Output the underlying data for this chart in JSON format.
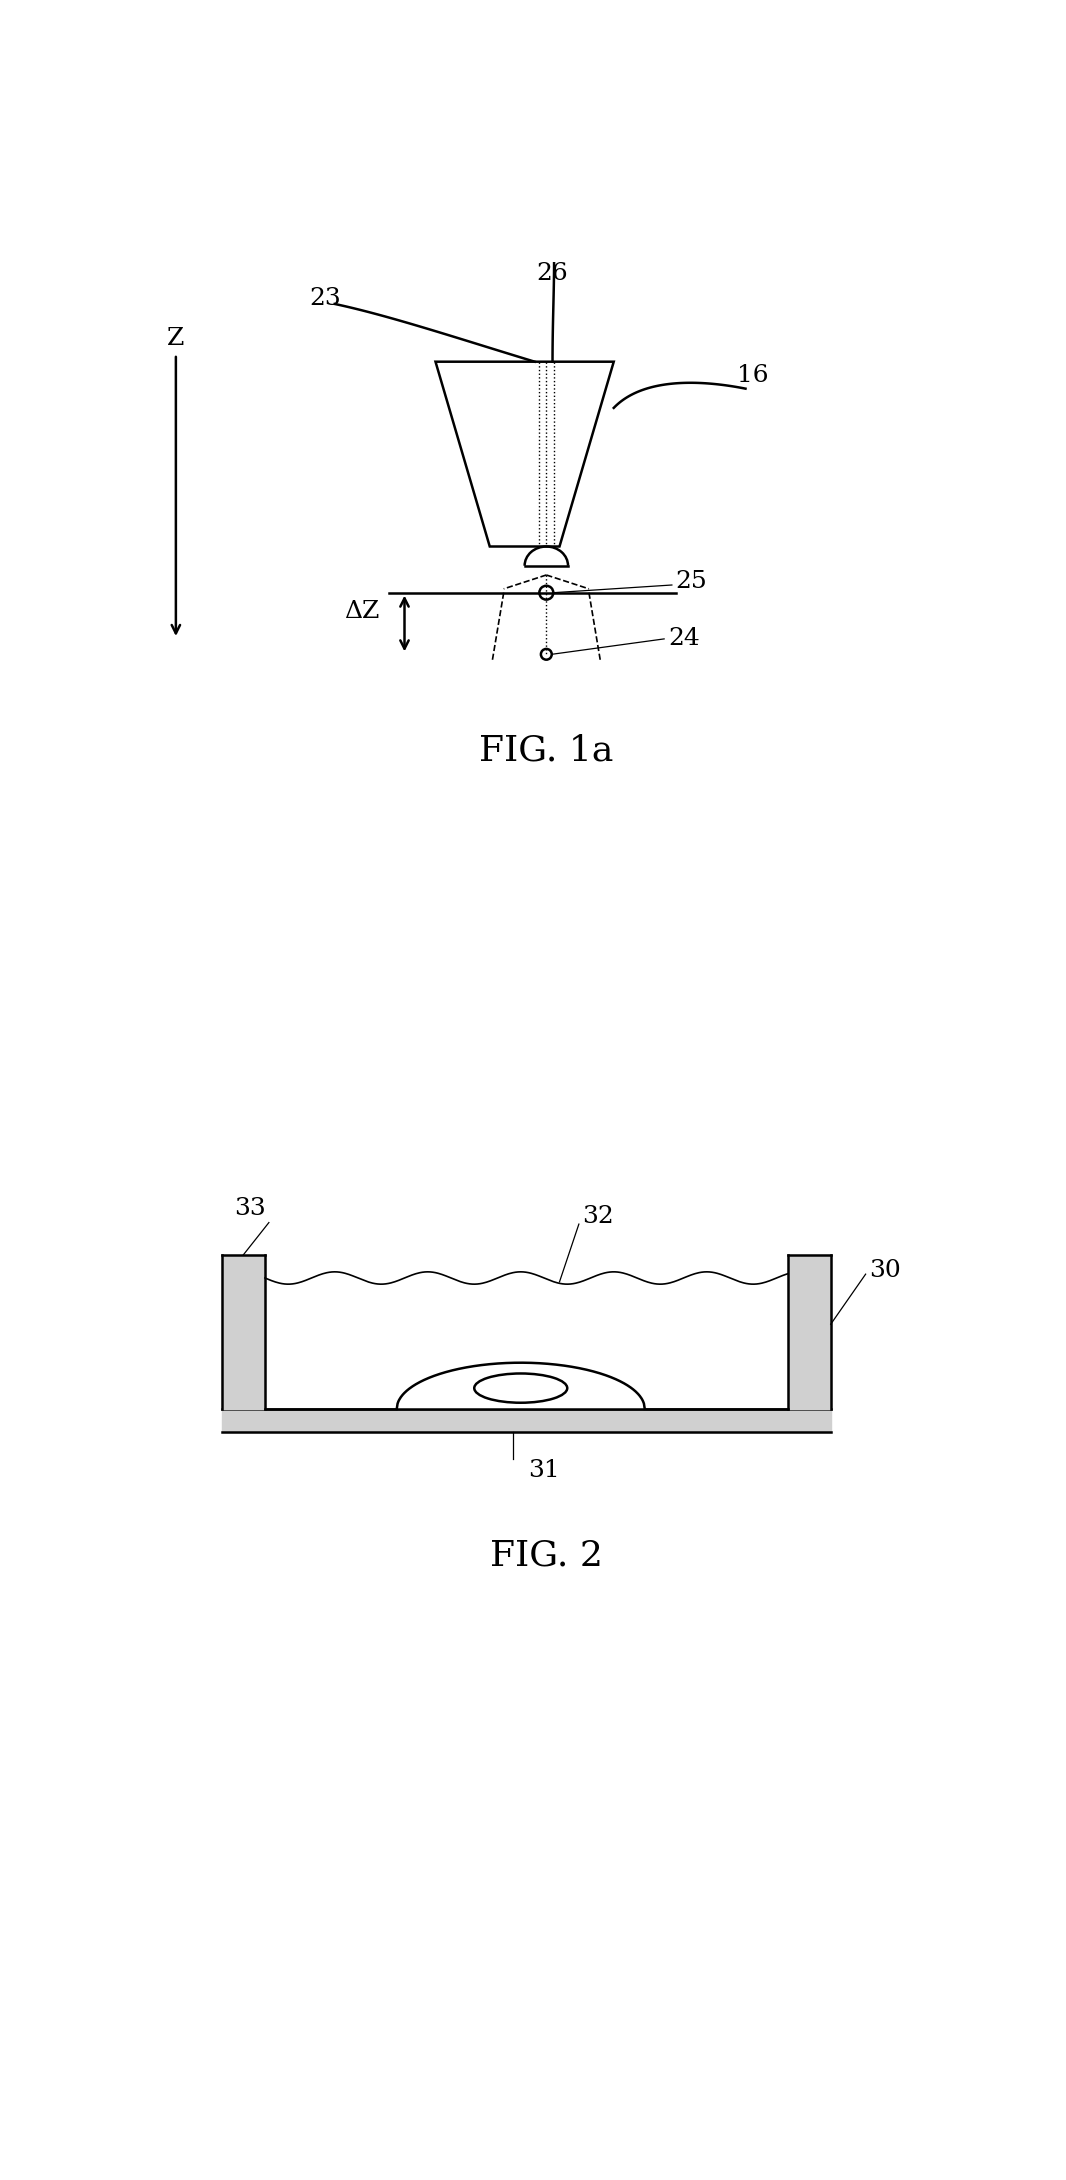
{
  "background_color": "#ffffff",
  "line_color": "#000000",
  "lw": 1.8,
  "fig1a_caption": "FIG. 1a",
  "fig2_caption": "FIG. 2",
  "label_16": "16",
  "label_23": "23",
  "label_24": "24",
  "label_25": "25",
  "label_26": "26",
  "label_Z": "Z",
  "label_DZ": "ΔZ",
  "label_30": "30",
  "label_31": "31",
  "label_32": "32",
  "label_33": "33"
}
